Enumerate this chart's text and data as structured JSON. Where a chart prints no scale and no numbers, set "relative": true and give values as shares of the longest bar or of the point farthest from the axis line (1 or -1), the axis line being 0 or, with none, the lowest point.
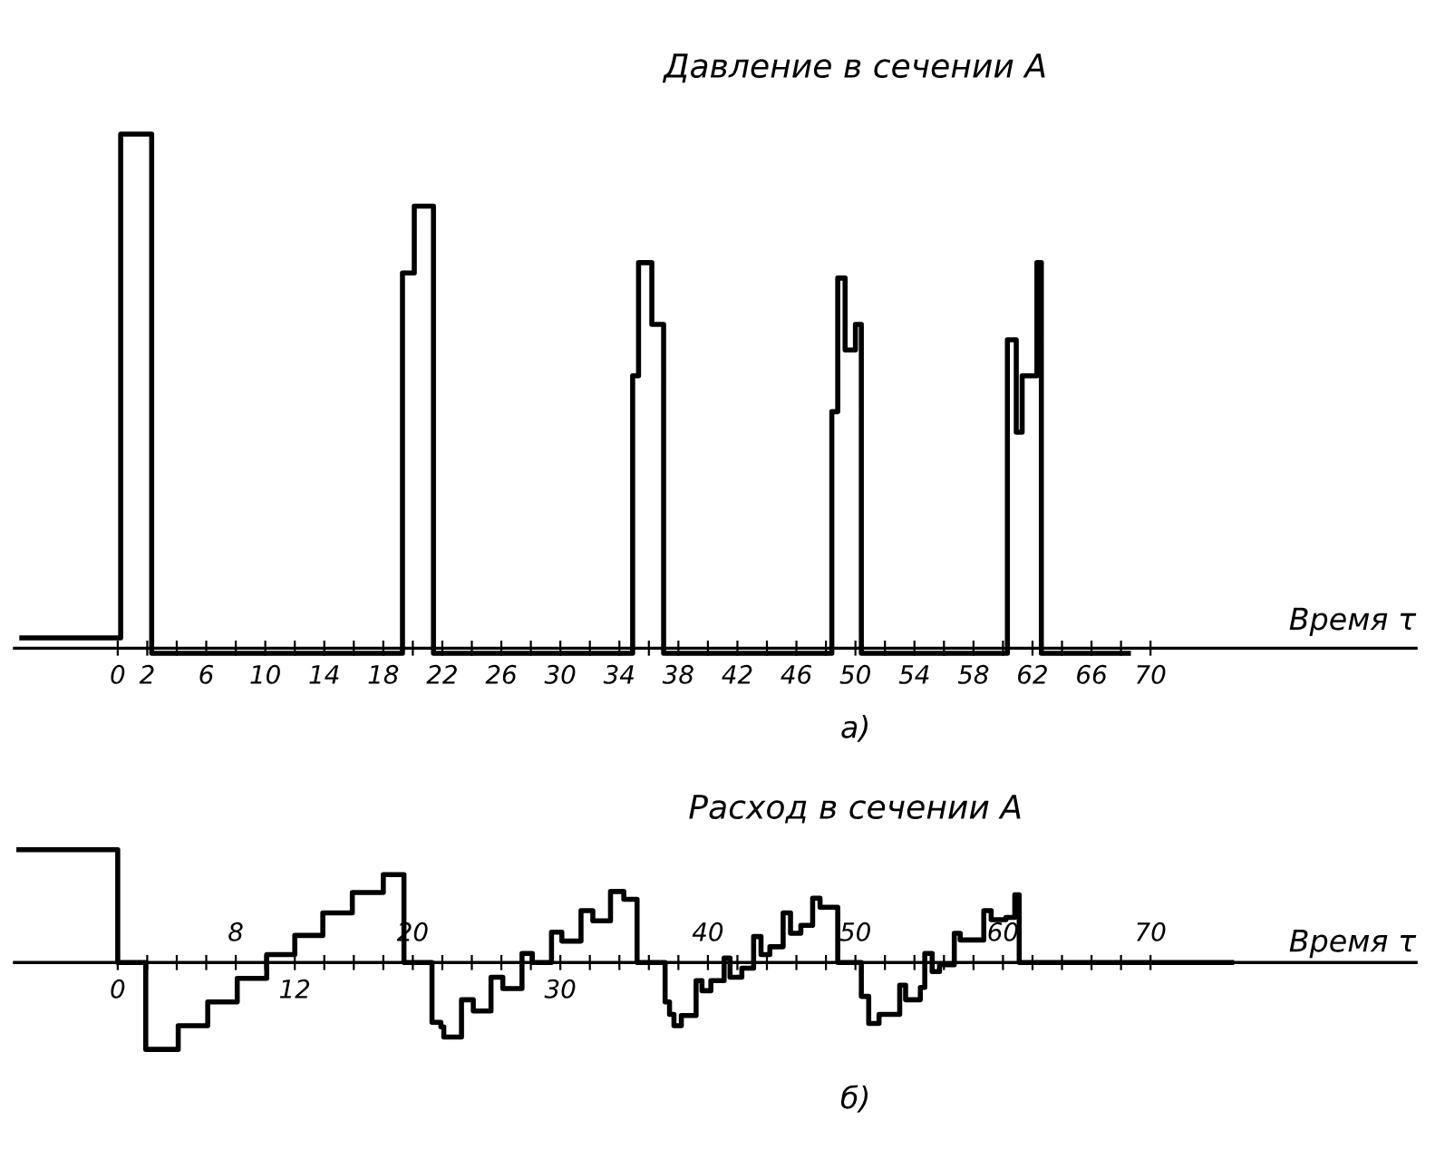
{
  "chart_data": [
    {
      "type": "step",
      "title": "Давление в сечении А",
      "xlabel": "Время τ",
      "relative": true,
      "annotations": [
        "а)"
      ],
      "xlim": [
        -7,
        88
      ],
      "xticks": [
        0,
        2,
        {
          "value": 4,
          "label": null
        },
        6,
        {
          "value": 8,
          "label": null
        },
        10,
        {
          "value": 12,
          "label": null
        },
        14,
        {
          "value": 16,
          "label": null
        },
        18,
        {
          "value": 20,
          "label": null
        },
        22,
        {
          "value": 24,
          "label": null
        },
        26,
        {
          "value": 28,
          "label": null
        },
        30,
        {
          "value": 32,
          "label": null
        },
        34,
        {
          "value": 36,
          "label": null
        },
        38,
        {
          "value": 40,
          "label": null
        },
        42,
        {
          "value": 44,
          "label": null
        },
        46,
        {
          "value": 48,
          "label": null
        },
        50,
        {
          "value": 52,
          "label": null
        },
        54,
        {
          "value": 56,
          "label": null
        },
        58,
        {
          "value": 60,
          "label": null
        },
        62,
        {
          "value": 64,
          "label": null
        },
        66,
        {
          "value": 68,
          "label": null
        },
        70
      ],
      "series": [
        {
          "color": "#000000",
          "x": [
            -6.5,
            0.2,
            2.3,
            19.3,
            20.1,
            21.4,
            34.9,
            35.3,
            36.2,
            37.0,
            48.4,
            48.8,
            49.3,
            50.0,
            50.4,
            60.3,
            60.9,
            61.3,
            62.3,
            62.6,
            68.5
          ],
          "values": [
            0.02,
            1,
            -0.01,
            0.73,
            0.86,
            -0.01,
            0.53,
            0.75,
            0.63,
            -0.01,
            0.46,
            0.72,
            0.58,
            0.63,
            -0.01,
            0.6,
            0.42,
            0.53,
            0.75,
            -0.01,
            -0.01
          ]
        }
      ],
      "grid": false,
      "legend": false,
      "marker": "none",
      "line_style": "solid"
    },
    {
      "type": "step",
      "title": "Расход в сечении А",
      "xlabel": "Время τ",
      "relative": true,
      "annotations": [
        "б)"
      ],
      "xlim": [
        -7,
        88
      ],
      "xticks": [
        0,
        {
          "value": 2,
          "label": null
        },
        {
          "value": 4,
          "label": null
        },
        {
          "value": 6,
          "label": null
        },
        {
          "value": 10,
          "label": null
        },
        12,
        {
          "value": 14,
          "label": null
        },
        {
          "value": 16,
          "label": null
        },
        {
          "value": 18,
          "label": null
        },
        {
          "value": 22,
          "label": null
        },
        {
          "value": 24,
          "label": null
        },
        {
          "value": 26,
          "label": null
        },
        {
          "value": 28,
          "label": null
        },
        30,
        {
          "value": 32,
          "label": null
        },
        {
          "value": 34,
          "label": null
        },
        {
          "value": 36,
          "label": null
        },
        {
          "value": 38,
          "label": null
        },
        {
          "value": 42,
          "label": null
        },
        {
          "value": 44,
          "label": null
        },
        {
          "value": 46,
          "label": null
        },
        {
          "value": 48,
          "label": null
        },
        {
          "value": 52,
          "label": null
        },
        {
          "value": 54,
          "label": null
        },
        {
          "value": 56,
          "label": null
        },
        {
          "value": 58,
          "label": null
        },
        {
          "value": 62,
          "label": null
        },
        {
          "value": 64,
          "label": null
        },
        {
          "value": 66,
          "label": null
        },
        {
          "value": 68,
          "label": null
        }
      ],
      "x2lim": [
        -7,
        88
      ],
      "x2ticks": [
        8,
        20,
        40,
        50,
        60,
        70
      ],
      "series": [
        {
          "color": "#000000",
          "x": [
            -6.7,
            0,
            1.9,
            4.1,
            6.1,
            8.1,
            10.1,
            12.0,
            13.9,
            15.9,
            18.0,
            19.4,
            21.3,
            21.9,
            22.1,
            23.3,
            24.1,
            25.3,
            26.1,
            27.4,
            28.1,
            29.4,
            30.1,
            31.4,
            32.2,
            33.4,
            34.3,
            35.2,
            37.1,
            37.4,
            37.7,
            38.2,
            39.2,
            39.6,
            40.2,
            41.1,
            41.5,
            42.3,
            43.1,
            43.6,
            44.2,
            45.1,
            45.6,
            46.3,
            47.1,
            47.6,
            48.8,
            50.4,
            50.9,
            51.6,
            53.0,
            53.4,
            54.4,
            54.7,
            55.2,
            55.7,
            56.7,
            57.1,
            58.7,
            59.2,
            60.2,
            60.8,
            61.1,
            75.5
          ],
          "values": [
            1,
            0,
            -0.77,
            -0.56,
            -0.35,
            -0.14,
            0.07,
            0.24,
            0.44,
            0.62,
            0.78,
            0,
            -0.53,
            -0.57,
            -0.66,
            -0.33,
            -0.43,
            -0.13,
            -0.23,
            0.08,
            0,
            0.27,
            0.19,
            0.46,
            0.37,
            0.63,
            0.56,
            0,
            -0.35,
            -0.46,
            -0.56,
            -0.47,
            -0.16,
            -0.25,
            -0.16,
            0.04,
            -0.13,
            -0.05,
            0.23,
            0.07,
            0.14,
            0.44,
            0.26,
            0.33,
            0.57,
            0.49,
            0,
            -0.3,
            -0.54,
            -0.46,
            -0.2,
            -0.33,
            -0.22,
            0.08,
            -0.08,
            -0.02,
            0.26,
            0.2,
            0.46,
            0.38,
            0.4,
            0.6,
            0,
            0
          ]
        }
      ],
      "grid": false,
      "legend": false,
      "marker": "none",
      "line_style": "solid"
    }
  ]
}
